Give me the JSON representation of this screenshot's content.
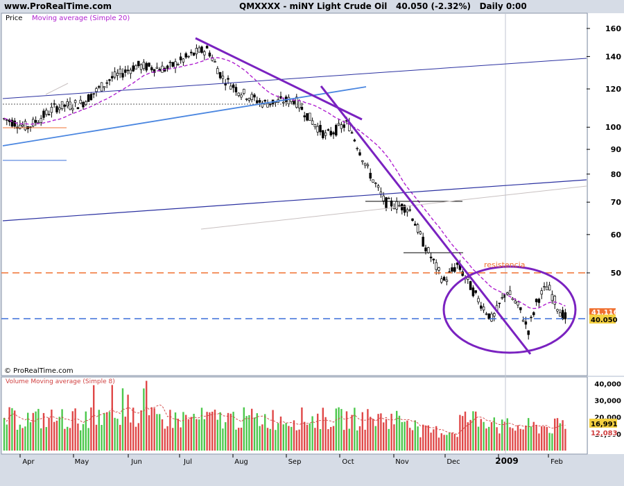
{
  "header": {
    "site": "www.ProRealTime.com",
    "instrument": "QMXXXX - miNY Light Crude Oil",
    "last_price": "40.050 (-2.32%)",
    "period": "Daily  0:00"
  },
  "price_panel": {
    "label": "Price",
    "ma_label": "Moving average (Simple 20)",
    "annotation": "resistencia",
    "price_badge": "40.050",
    "ma_badge": "41.116",
    "watermark": "© ProRealTime.com"
  },
  "volume_panel": {
    "label": "Volume Moving average (Simple 8)",
    "last_volume_badge": "16,991",
    "ma_badge": "12,083"
  },
  "colors": {
    "up_candle": "#ffffff",
    "down_candle": "#000000",
    "ma": "#b020d0",
    "trendline": "#7a22c0",
    "support_blue": "#3a6fd8",
    "resistance_orange": "#f07030",
    "vol_up": "#4cc84c",
    "vol_down": "#e04848"
  },
  "chart_data": [
    {
      "type": "candlestick",
      "title": "QMXXXX - miNY Light Crude Oil",
      "scale": "log",
      "ylim": [
        36,
        165
      ],
      "yticks": [
        50,
        60,
        70,
        80,
        90,
        100,
        120,
        140,
        160
      ],
      "xticks": [
        "Apr",
        "May",
        "Jun",
        "Jul",
        "Aug",
        "Sep",
        "Oct",
        "Nov",
        "Dec",
        "2009",
        "Feb"
      ],
      "grid": false,
      "legend": "top-left",
      "series_close_monthly": [
        {
          "month": "Apr",
          "close": 103
        },
        {
          "month": "May",
          "close": 112
        },
        {
          "month": "Jun",
          "close": 134
        },
        {
          "month": "Jul",
          "close": 140
        },
        {
          "month": "Aug",
          "close": 118
        },
        {
          "month": "Sep",
          "close": 113
        },
        {
          "month": "Oct",
          "close": 100
        },
        {
          "month": "Nov",
          "close": 67
        },
        {
          "month": "Dec",
          "close": 49
        },
        {
          "month": "2009",
          "close": 44
        },
        {
          "month": "Feb",
          "close": 41
        }
      ],
      "levels": {
        "resistance": 50,
        "support": 41,
        "last": 40.05,
        "ma20": 41.116
      }
    },
    {
      "type": "bar",
      "title": "Volume Moving average (Simple 8)",
      "ylim": [
        0,
        42000
      ],
      "yticks": [
        10000,
        20000,
        30000,
        40000
      ],
      "last_volume": 16991,
      "ma8": 12083
    }
  ]
}
